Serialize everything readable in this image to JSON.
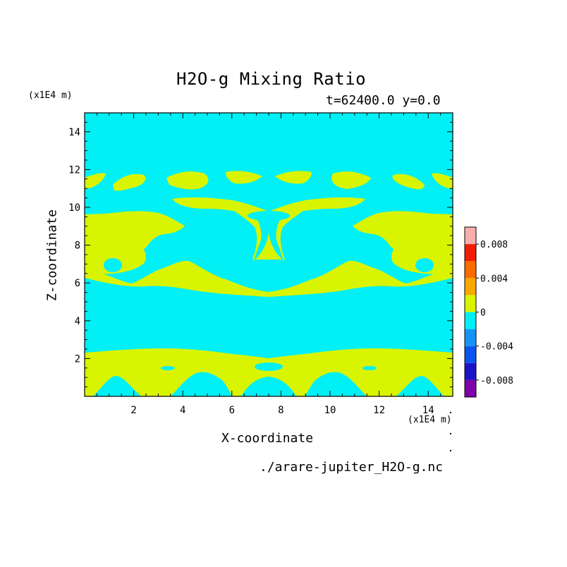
{
  "chart_data": {
    "type": "heatmap",
    "title": "H2O-g Mixing Ratio",
    "subtitle": "t=62400.0 y=0.0",
    "xlabel": "X-coordinate",
    "ylabel": "Z-coordinate",
    "x_unit_label": "(x1E4 m)",
    "y_unit_label": "(x1E4 m)",
    "source_file": "./arare-jupiter_H2O-g.nc",
    "xlim": [
      0,
      15
    ],
    "ylim": [
      0,
      15
    ],
    "xticks": [
      2,
      4,
      6,
      8,
      10,
      12,
      14
    ],
    "yticks": [
      2,
      4,
      6,
      8,
      10,
      12,
      14
    ],
    "field_description_levels": {
      "background_bin": [
        -0.002,
        0
      ],
      "feature_bin": [
        0,
        0.002
      ]
    },
    "colorbar": {
      "bins": [
        {
          "lo": -0.01,
          "hi": -0.008,
          "color": "#7f00a8"
        },
        {
          "lo": -0.008,
          "hi": -0.006,
          "color": "#1c12c8"
        },
        {
          "lo": -0.006,
          "hi": -0.004,
          "color": "#0a54ef"
        },
        {
          "lo": -0.004,
          "hi": -0.002,
          "color": "#1694f6"
        },
        {
          "lo": -0.002,
          "hi": 0,
          "color": "#00f0f5"
        },
        {
          "lo": 0,
          "hi": 0.002,
          "color": "#d9f400"
        },
        {
          "lo": 0.002,
          "hi": 0.004,
          "color": "#f9a800"
        },
        {
          "lo": 0.004,
          "hi": 0.006,
          "color": "#f86c00"
        },
        {
          "lo": 0.006,
          "hi": 0.008,
          "color": "#f21c00"
        },
        {
          "lo": 0.008,
          "hi": 0.01,
          "color": "#f9aeae"
        }
      ],
      "tick_labels": [
        "0.008",
        "0.004",
        "0",
        "-0.004",
        "-0.008"
      ],
      "tick_values": [
        0.008,
        0.004,
        0,
        -0.004,
        -0.008
      ]
    },
    "colors": {
      "background": "#00f0f5",
      "feature": "#d9f400"
    }
  }
}
